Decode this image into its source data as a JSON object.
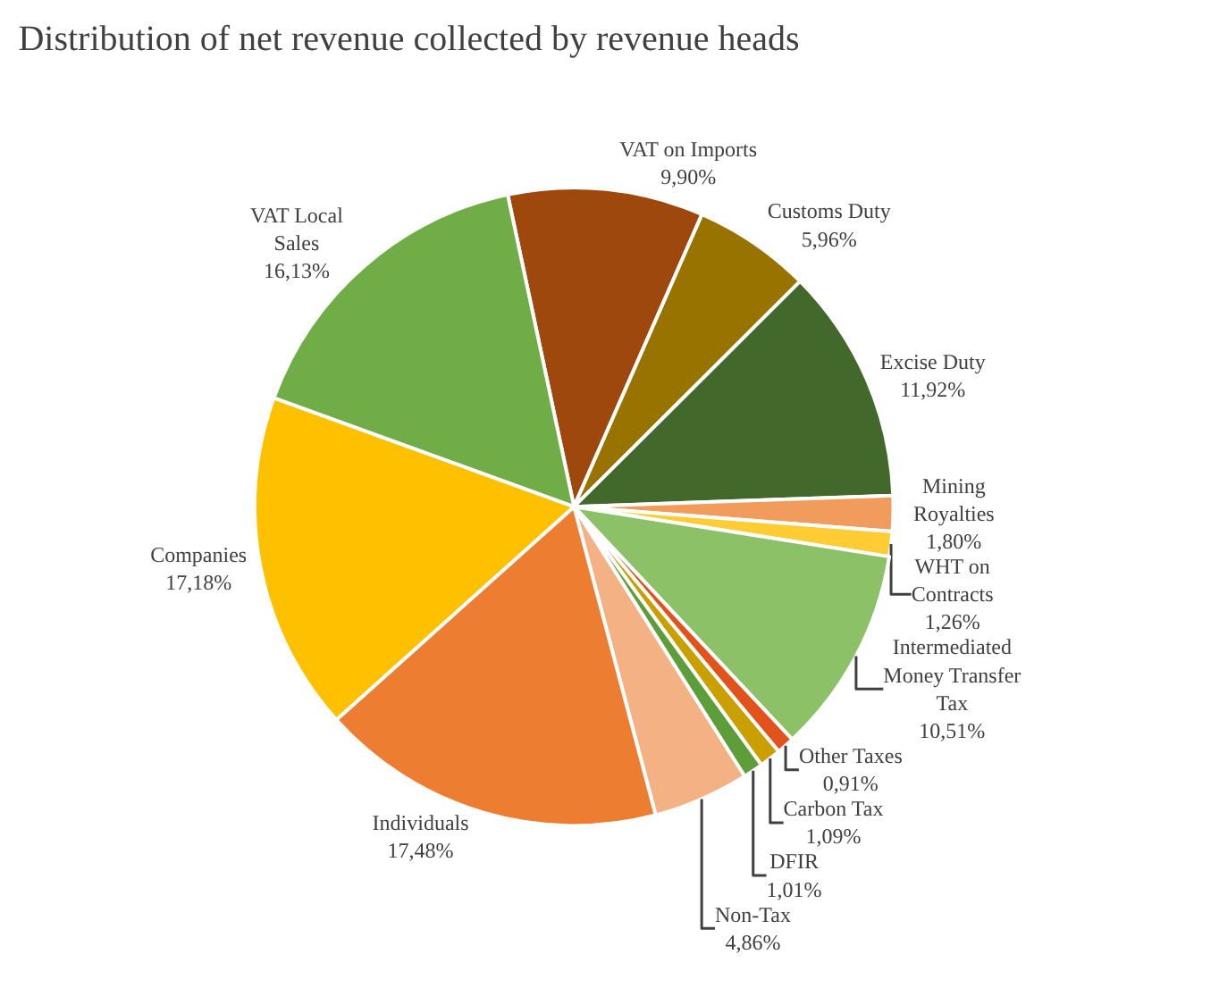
{
  "chart_data": {
    "type": "pie",
    "title": "Distribution of net revenue collected by revenue heads",
    "categories": [
      "VAT on Imports",
      "Customs Duty",
      "Excise Duty",
      "Mining Royalties",
      "WHT on Contracts",
      "Intermediated Money Transfer Tax",
      "Other Taxes",
      "Carbon Tax",
      "DFIR",
      "Non-Tax",
      "Individuals",
      "Companies",
      "VAT Local Sales"
    ],
    "values": [
      9.9,
      5.96,
      11.92,
      1.8,
      1.26,
      10.51,
      0.91,
      1.09,
      1.01,
      4.86,
      17.48,
      17.18,
      16.13
    ],
    "value_labels": [
      "9,90%",
      "5,96%",
      "11,92%",
      "1,80%",
      "1,26%",
      "10,51%",
      "0,91%",
      "1,09%",
      "1,01%",
      "4,86%",
      "17,48%",
      "17,18%",
      "16,13%"
    ],
    "colors": [
      "#9e480e",
      "#997300",
      "#43682b",
      "#f19b5d",
      "#ffcd33",
      "#8cc168",
      "#e1531b",
      "#c9a000",
      "#5e9e3a",
      "#f4b183",
      "#ed7d31",
      "#ffc000",
      "#70ad47"
    ],
    "legend": false
  }
}
